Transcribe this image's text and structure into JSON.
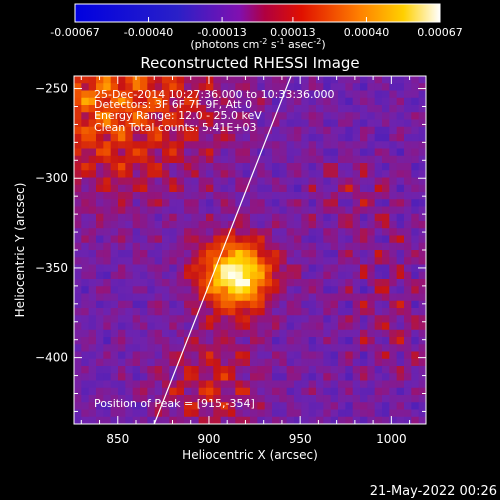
{
  "chart_data": {
    "type": "heatmap",
    "title": "Reconstructed RHESSI Image",
    "xlabel": "Heliocentric X (arcsec)",
    "ylabel": "Heliocentric Y (arcsec)",
    "xlim": [
      826,
      1019
    ],
    "ylim": [
      -437,
      -243
    ],
    "x_ticks": [
      850,
      900,
      950,
      1000
    ],
    "y_ticks": [
      -400,
      -350,
      -300,
      -250
    ],
    "colorbar": {
      "min": -0.00067,
      "max": 0.00067,
      "tick_values": [
        -0.00067,
        -0.0004,
        -0.00013,
        0.00013,
        0.0004,
        0.00067
      ],
      "tick_labels": [
        "-0.00067",
        "-0.00040",
        "-0.00013",
        "0.00013",
        "0.00040",
        "0.00067"
      ],
      "units_label": "(photons cm",
      "units_exp1": "-2",
      "units_mid": " s",
      "units_exp2": "-1",
      "units_mid2": " asec",
      "units_exp3": "-2",
      "units_end": ")"
    },
    "annotations": {
      "time_range": "25-Dec-2014 10:27:36.000 to 10:33:36.000",
      "detectors": "Detectors: 3F 6F 7F 9F, Att 0",
      "energy": "Energy Range: 12.0 - 25.0 keV",
      "clean": "Clean     Total counts: 5.41E+03",
      "peak": "Position of Peak = [915,-354]"
    },
    "peak": [
      915,
      -354
    ],
    "limb_line": [
      [
        870,
        -437
      ],
      [
        945,
        -243
      ]
    ],
    "timestamp": "21-May-2022 00:26",
    "colors": {
      "low": "#1010ff",
      "mid": "#5a1aa0",
      "high": "#ffffff",
      "peak": "#ffd200"
    }
  }
}
